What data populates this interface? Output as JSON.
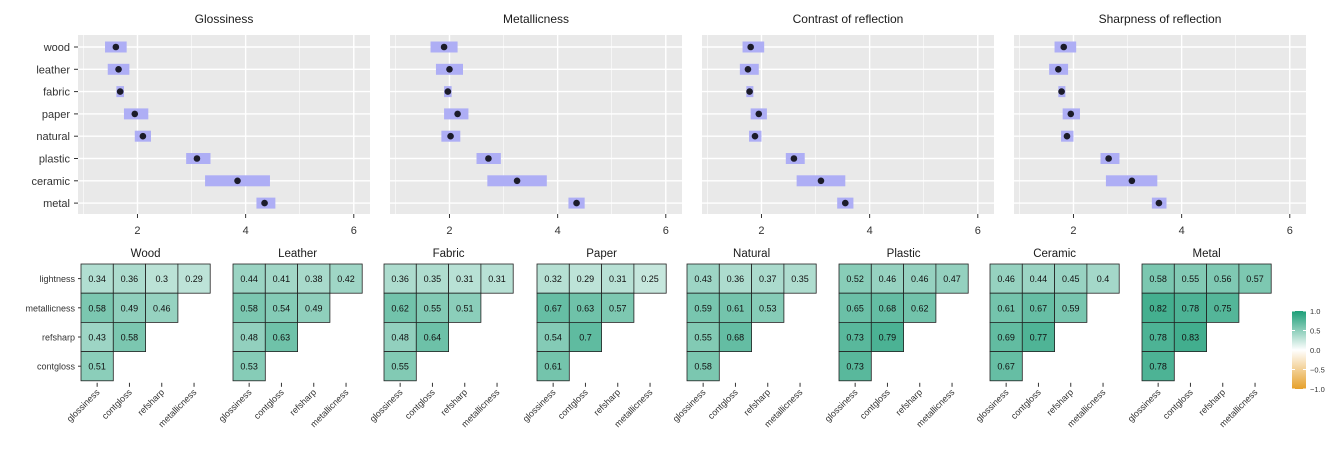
{
  "colors": {
    "panel_bg": "#e9e9e9",
    "grid": "#ffffff",
    "interval": "#aeaef5",
    "point": "#1c1c2a",
    "cell_border": "#222222",
    "positive": "#1b9e77",
    "negative": "#e6a02a"
  },
  "chart_data": [
    {
      "type": "dot-interval",
      "title": "Glossiness",
      "categories": [
        "wood",
        "leather",
        "fabric",
        "paper",
        "natural",
        "plastic",
        "ceramic",
        "metal"
      ],
      "values": [
        1.6,
        1.65,
        1.68,
        1.95,
        2.1,
        3.1,
        3.85,
        4.35
      ],
      "lower": [
        1.4,
        1.45,
        1.61,
        1.75,
        1.95,
        2.9,
        3.25,
        4.2
      ],
      "upper": [
        1.8,
        1.85,
        1.75,
        2.2,
        2.25,
        3.35,
        4.45,
        4.55
      ],
      "xlim": [
        0.9,
        6.3
      ],
      "xticks": [
        "2",
        "4",
        "6"
      ],
      "grid": true
    },
    {
      "type": "dot-interval",
      "title": "Metallicness",
      "categories": [
        "wood",
        "leather",
        "fabric",
        "paper",
        "natural",
        "plastic",
        "ceramic",
        "metal"
      ],
      "values": [
        1.9,
        2.0,
        1.97,
        2.15,
        2.02,
        2.72,
        3.25,
        4.35
      ],
      "lower": [
        1.65,
        1.75,
        1.9,
        1.9,
        1.85,
        2.5,
        2.7,
        4.2
      ],
      "upper": [
        2.15,
        2.25,
        2.04,
        2.35,
        2.2,
        2.95,
        3.8,
        4.5
      ],
      "xlim": [
        0.9,
        6.3
      ],
      "xticks": [
        "2",
        "4",
        "6"
      ],
      "grid": true
    },
    {
      "type": "dot-interval",
      "title": "Contrast of reflection",
      "categories": [
        "wood",
        "leather",
        "fabric",
        "paper",
        "natural",
        "plastic",
        "ceramic",
        "metal"
      ],
      "values": [
        1.8,
        1.75,
        1.78,
        1.95,
        1.88,
        2.6,
        3.1,
        3.55
      ],
      "lower": [
        1.65,
        1.6,
        1.72,
        1.8,
        1.77,
        2.45,
        2.65,
        3.4
      ],
      "upper": [
        2.05,
        1.95,
        1.85,
        2.1,
        2.0,
        2.8,
        3.55,
        3.7
      ],
      "xlim": [
        0.9,
        6.3
      ],
      "xticks": [
        "2",
        "4",
        "6"
      ],
      "grid": true
    },
    {
      "type": "dot-interval",
      "title": "Sharpness of reflection",
      "categories": [
        "wood",
        "leather",
        "fabric",
        "paper",
        "natural",
        "plastic",
        "ceramic",
        "metal"
      ],
      "values": [
        1.82,
        1.72,
        1.78,
        1.95,
        1.88,
        2.65,
        3.08,
        3.58
      ],
      "lower": [
        1.65,
        1.55,
        1.72,
        1.8,
        1.77,
        2.5,
        2.6,
        3.45
      ],
      "upper": [
        2.05,
        1.9,
        1.85,
        2.12,
        2.0,
        2.85,
        3.55,
        3.72
      ],
      "xlim": [
        0.9,
        6.3
      ],
      "xticks": [
        "2",
        "4",
        "6"
      ],
      "grid": true
    },
    {
      "type": "heatmap",
      "title": "Wood",
      "rows": [
        "lightness",
        "metallicness",
        "refsharp",
        "contgloss"
      ],
      "columns": [
        "glossiness",
        "contgloss",
        "refsharp",
        "metallicness"
      ],
      "values": [
        [
          0.34,
          0.36,
          0.3,
          0.29
        ],
        [
          0.58,
          0.49,
          0.46
        ],
        [
          0.43,
          0.58
        ],
        [
          0.51
        ]
      ],
      "labels": [
        [
          "0.34",
          "0.36",
          "0.3",
          "0.29"
        ],
        [
          "0.58",
          "0.49",
          "0.46"
        ],
        [
          "0.43",
          "0.58"
        ],
        [
          "0.51"
        ]
      ]
    },
    {
      "type": "heatmap",
      "title": "Leather",
      "rows": [
        "lightness",
        "metallicness",
        "refsharp",
        "contgloss"
      ],
      "columns": [
        "glossiness",
        "contgloss",
        "refsharp",
        "metallicness"
      ],
      "values": [
        [
          0.44,
          0.41,
          0.38,
          0.42
        ],
        [
          0.58,
          0.54,
          0.49
        ],
        [
          0.48,
          0.63
        ],
        [
          0.53
        ]
      ],
      "labels": [
        [
          "0.44",
          "0.41",
          "0.38",
          "0.42"
        ],
        [
          "0.58",
          "0.54",
          "0.49"
        ],
        [
          "0.48",
          "0.63"
        ],
        [
          "0.53"
        ]
      ]
    },
    {
      "type": "heatmap",
      "title": "Fabric",
      "rows": [
        "lightness",
        "metallicness",
        "refsharp",
        "contgloss"
      ],
      "columns": [
        "glossiness",
        "contgloss",
        "refsharp",
        "metallicness"
      ],
      "values": [
        [
          0.36,
          0.35,
          0.31,
          0.31
        ],
        [
          0.62,
          0.55,
          0.51
        ],
        [
          0.48,
          0.64
        ],
        [
          0.55
        ]
      ],
      "labels": [
        [
          "0.36",
          "0.35",
          "0.31",
          "0.31"
        ],
        [
          "0.62",
          "0.55",
          "0.51"
        ],
        [
          "0.48",
          "0.64"
        ],
        [
          "0.55"
        ]
      ]
    },
    {
      "type": "heatmap",
      "title": "Paper",
      "rows": [
        "lightness",
        "metallicness",
        "refsharp",
        "contgloss"
      ],
      "columns": [
        "glossiness",
        "contgloss",
        "refsharp",
        "metallicness"
      ],
      "values": [
        [
          0.32,
          0.29,
          0.31,
          0.25
        ],
        [
          0.67,
          0.63,
          0.57
        ],
        [
          0.54,
          0.7
        ],
        [
          0.61
        ]
      ],
      "labels": [
        [
          "0.32",
          "0.29",
          "0.31",
          "0.25"
        ],
        [
          "0.67",
          "0.63",
          "0.57"
        ],
        [
          "0.54",
          "0.7"
        ],
        [
          "0.61"
        ]
      ]
    },
    {
      "type": "heatmap",
      "title": "Natural",
      "rows": [
        "lightness",
        "metallicness",
        "refsharp",
        "contgloss"
      ],
      "columns": [
        "glossiness",
        "contgloss",
        "refsharp",
        "metallicness"
      ],
      "values": [
        [
          0.43,
          0.36,
          0.37,
          0.35
        ],
        [
          0.59,
          0.61,
          0.53
        ],
        [
          0.55,
          0.68
        ],
        [
          0.58
        ]
      ],
      "labels": [
        [
          "0.43",
          "0.36",
          "0.37",
          "0.35"
        ],
        [
          "0.59",
          "0.61",
          "0.53"
        ],
        [
          "0.55",
          "0.68"
        ],
        [
          "0.58"
        ]
      ]
    },
    {
      "type": "heatmap",
      "title": "Plastic",
      "rows": [
        "lightness",
        "metallicness",
        "refsharp",
        "contgloss"
      ],
      "columns": [
        "glossiness",
        "contgloss",
        "refsharp",
        "metallicness"
      ],
      "values": [
        [
          0.52,
          0.46,
          0.46,
          0.47
        ],
        [
          0.65,
          0.68,
          0.62
        ],
        [
          0.73,
          0.79
        ],
        [
          0.73
        ]
      ],
      "labels": [
        [
          "0.52",
          "0.46",
          "0.46",
          "0.47"
        ],
        [
          "0.65",
          "0.68",
          "0.62"
        ],
        [
          "0.73",
          "0.79"
        ],
        [
          "0.73"
        ]
      ]
    },
    {
      "type": "heatmap",
      "title": "Ceramic",
      "rows": [
        "lightness",
        "metallicness",
        "refsharp",
        "contgloss"
      ],
      "columns": [
        "glossiness",
        "contgloss",
        "refsharp",
        "metallicness"
      ],
      "values": [
        [
          0.46,
          0.44,
          0.45,
          0.4
        ],
        [
          0.61,
          0.67,
          0.59
        ],
        [
          0.69,
          0.77
        ],
        [
          0.67
        ]
      ],
      "labels": [
        [
          "0.46",
          "0.44",
          "0.45",
          "0.4"
        ],
        [
          "0.61",
          "0.67",
          "0.59"
        ],
        [
          "0.69",
          "0.77"
        ],
        [
          "0.67"
        ]
      ]
    },
    {
      "type": "heatmap",
      "title": "Metal",
      "rows": [
        "lightness",
        "metallicness",
        "refsharp",
        "contgloss"
      ],
      "columns": [
        "glossiness",
        "contgloss",
        "refsharp",
        "metallicness"
      ],
      "values": [
        [
          0.58,
          0.55,
          0.56,
          0.57
        ],
        [
          0.82,
          0.78,
          0.75
        ],
        [
          0.78,
          0.83
        ],
        [
          0.78
        ]
      ],
      "labels": [
        [
          "0.58",
          "0.55",
          "0.56",
          "0.57"
        ],
        [
          "0.82",
          "0.78",
          "0.75"
        ],
        [
          "0.78",
          "0.83"
        ],
        [
          "0.78"
        ]
      ]
    }
  ],
  "legend": {
    "type": "colorbar",
    "range": [
      -1.0,
      1.0
    ],
    "ticks": [
      "1.0",
      "0.5",
      "0.0",
      "−0.5",
      "−1.0"
    ],
    "tick_values": [
      1.0,
      0.5,
      0.0,
      -0.5,
      -1.0
    ],
    "placement": "right"
  }
}
